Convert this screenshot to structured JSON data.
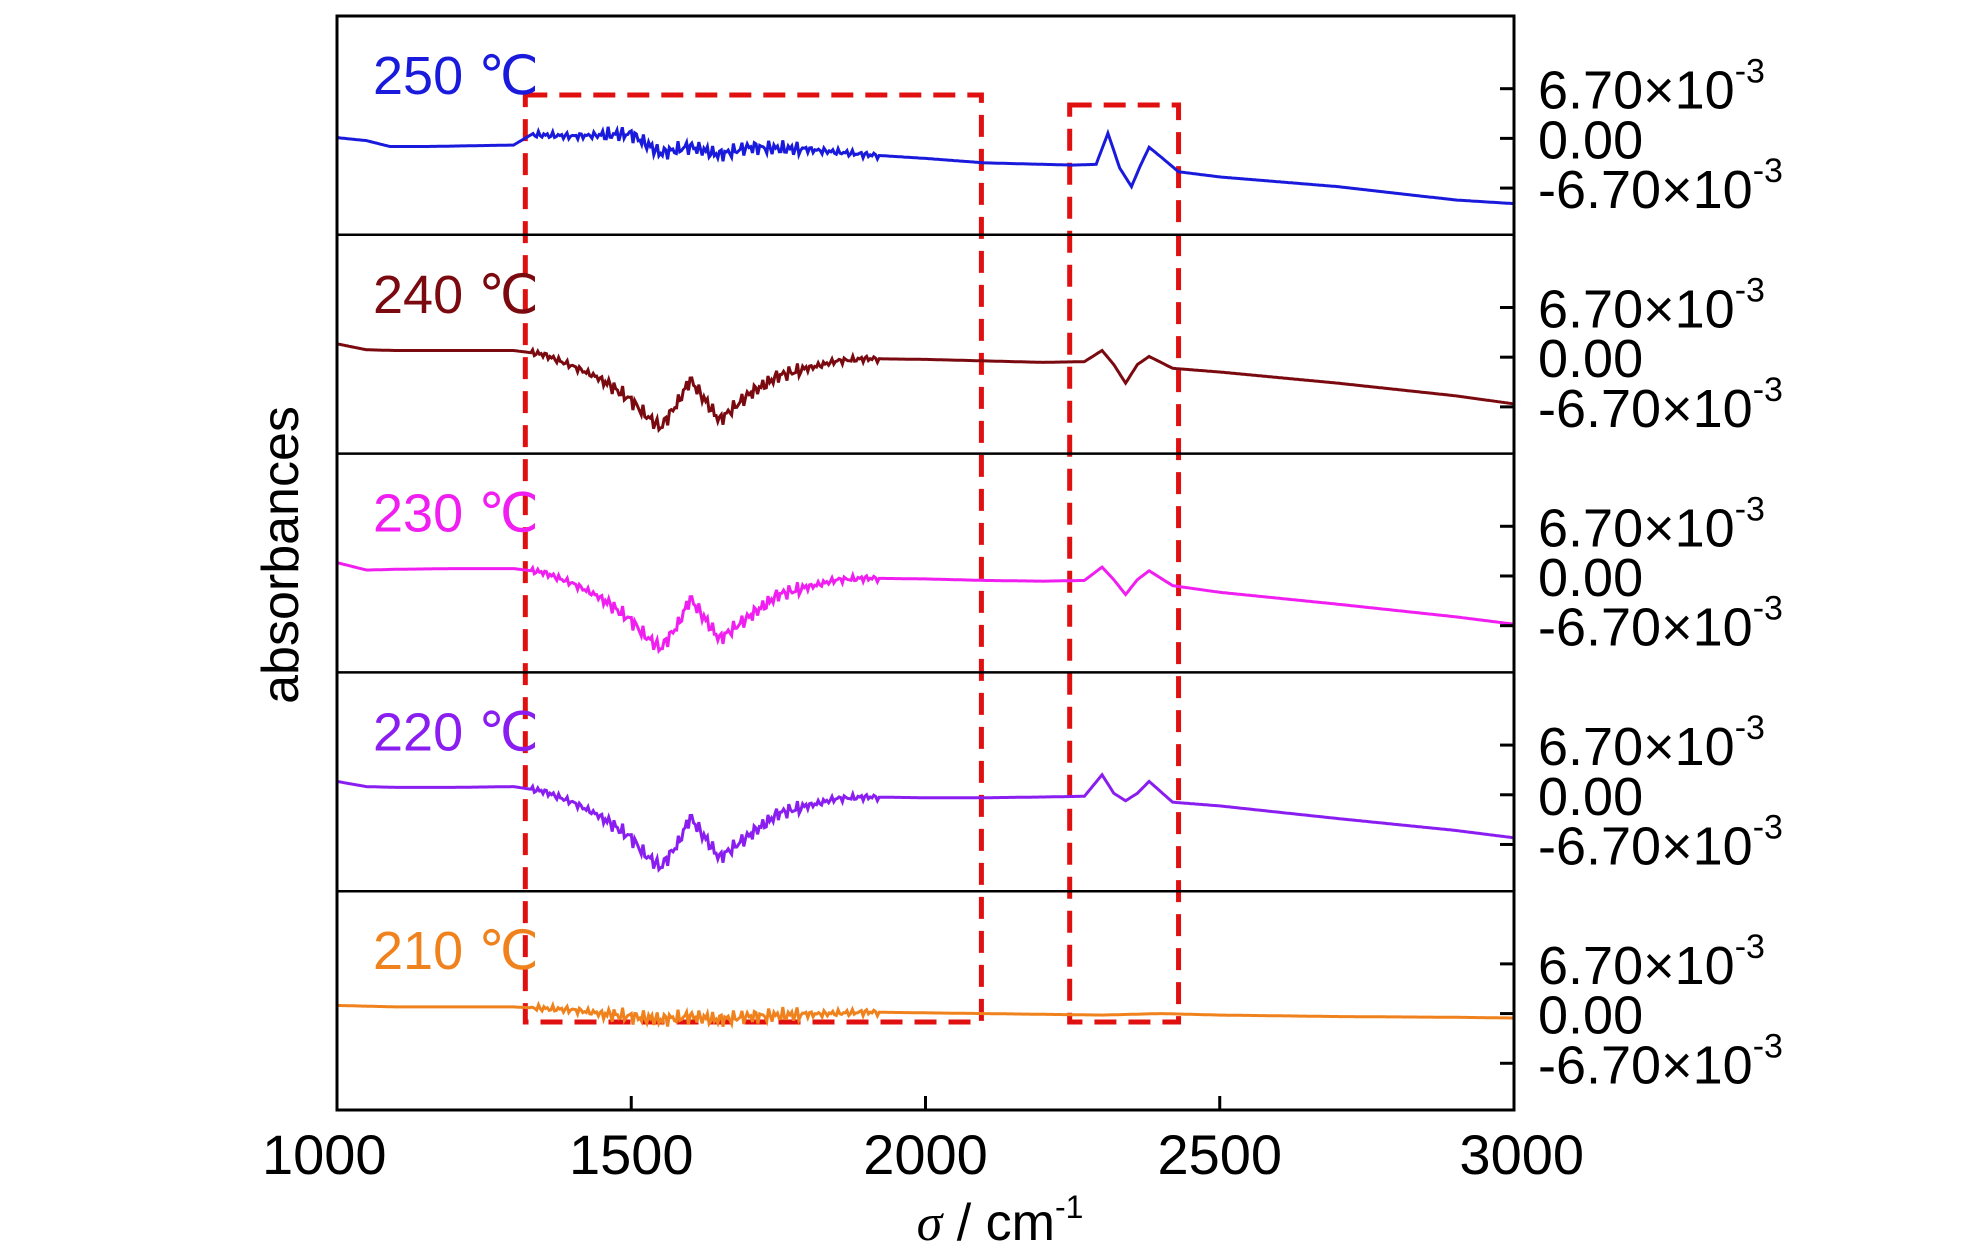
{
  "chart_data": {
    "type": "line",
    "xlabel_symbol": "σ",
    "xlabel_unit": " / cm",
    "xlabel_sup": "-1",
    "ylabel": "absorbances",
    "xlim": [
      1000,
      3000
    ],
    "x_ticks": [
      "1000",
      "1500",
      "2000",
      "2500",
      "3000"
    ],
    "y_tick_labels": {
      "upper_mantissa": "6.70×10",
      "upper_sup": "-3",
      "zero": "0.00",
      "lower_mantissa": "-6.70×10",
      "lower_sup": "-3"
    },
    "panel_ylim": [
      -0.013,
      0.0165
    ],
    "y_tick_values": [
      0.0067,
      0,
      -0.0067
    ],
    "highlight_boxes_x": [
      [
        1320,
        2095
      ],
      [
        2245,
        2430
      ]
    ],
    "series": [
      {
        "name": "250 ℃",
        "color": "#1a1adc",
        "x": [
          1000,
          1050,
          1090,
          1150,
          1300,
          1330,
          1400,
          1500,
          1550,
          1600,
          1650,
          1700,
          1800,
          1900,
          2000,
          2100,
          2250,
          2290,
          2310,
          2330,
          2350,
          2365,
          2380,
          2400,
          2430,
          2500,
          2700,
          2900,
          3000
        ],
        "y": [
          0.0001,
          -0.0003,
          -0.0011,
          -0.0011,
          -0.0009,
          0.0005,
          0.0003,
          0.0006,
          -0.002,
          -0.0011,
          -0.0022,
          -0.0012,
          -0.0015,
          -0.0022,
          -0.0027,
          -0.0033,
          -0.0036,
          -0.0035,
          0.0007,
          -0.004,
          -0.0065,
          -0.0037,
          -0.0012,
          -0.0025,
          -0.0045,
          -0.0052,
          -0.0065,
          -0.0083,
          -0.0088
        ]
      },
      {
        "name": "240 ℃",
        "color": "#7a0a10",
        "x": [
          1000,
          1050,
          1100,
          1200,
          1300,
          1350,
          1400,
          1450,
          1500,
          1520,
          1550,
          1580,
          1600,
          1650,
          1700,
          1750,
          1800,
          1850,
          1900,
          2000,
          2100,
          2200,
          2270,
          2300,
          2320,
          2340,
          2360,
          2380,
          2420,
          2500,
          2700,
          2900,
          3000
        ],
        "y": [
          0.0018,
          0.001,
          0.0009,
          0.0009,
          0.0009,
          0.0004,
          -0.0012,
          -0.003,
          -0.0058,
          -0.0075,
          -0.0095,
          -0.006,
          -0.003,
          -0.0085,
          -0.005,
          -0.0025,
          -0.0015,
          -0.0005,
          -0.0002,
          -0.0003,
          -0.0005,
          -0.0007,
          -0.0006,
          0.0009,
          -0.001,
          -0.0035,
          -0.001,
          0.0001,
          -0.0015,
          -0.002,
          -0.0035,
          -0.0052,
          -0.0063
        ]
      },
      {
        "name": "230 ℃",
        "color": "#f01ef0",
        "x": [
          1000,
          1050,
          1100,
          1200,
          1300,
          1350,
          1400,
          1450,
          1500,
          1520,
          1550,
          1580,
          1600,
          1650,
          1700,
          1750,
          1800,
          1850,
          1900,
          2000,
          2100,
          2200,
          2270,
          2300,
          2320,
          2340,
          2360,
          2380,
          2420,
          2500,
          2700,
          2900,
          3000
        ],
        "y": [
          0.0018,
          0.0008,
          0.0009,
          0.001,
          0.001,
          0.0005,
          -0.001,
          -0.003,
          -0.006,
          -0.0078,
          -0.0098,
          -0.0065,
          -0.003,
          -0.0085,
          -0.0055,
          -0.0025,
          -0.0015,
          -0.0005,
          -0.0003,
          -0.0004,
          -0.0006,
          -0.0007,
          -0.0006,
          0.0012,
          -0.0005,
          -0.0025,
          -0.0005,
          0.0007,
          -0.0013,
          -0.0022,
          -0.0038,
          -0.0055,
          -0.0065
        ]
      },
      {
        "name": "220 ℃",
        "color": "#8a1ef0",
        "x": [
          1000,
          1050,
          1100,
          1200,
          1300,
          1350,
          1400,
          1450,
          1500,
          1520,
          1550,
          1580,
          1600,
          1650,
          1700,
          1750,
          1800,
          1850,
          1900,
          2000,
          2100,
          2200,
          2270,
          2300,
          2320,
          2340,
          2360,
          2380,
          2420,
          2500,
          2700,
          2900,
          3000
        ],
        "y": [
          0.0018,
          0.0011,
          0.001,
          0.001,
          0.0011,
          0.0005,
          -0.001,
          -0.003,
          -0.0058,
          -0.0078,
          -0.0098,
          -0.0065,
          -0.003,
          -0.0085,
          -0.0055,
          -0.0025,
          -0.0015,
          -0.0005,
          -0.0003,
          -0.0004,
          -0.0004,
          -0.0003,
          -0.0002,
          0.0027,
          0.0002,
          -0.0008,
          0.0002,
          0.0018,
          -0.001,
          -0.0015,
          -0.0032,
          -0.0048,
          -0.0058
        ]
      },
      {
        "name": "210 ℃",
        "color": "#f0821e",
        "x": [
          1000,
          1100,
          1200,
          1300,
          1400,
          1450,
          1500,
          1550,
          1600,
          1650,
          1700,
          1800,
          1900,
          2000,
          2100,
          2200,
          2300,
          2400,
          2500,
          2700,
          2900,
          3000
        ],
        "y": [
          0.0011,
          0.0009,
          0.0009,
          0.0009,
          0.0005,
          0.0,
          -0.0004,
          -0.0008,
          -0.0004,
          -0.0008,
          -0.0004,
          -0.0001,
          0.0002,
          0.0001,
          0.0,
          -0.0001,
          -0.0002,
          0.0,
          -0.0002,
          -0.0004,
          -0.0005,
          -0.0006
        ]
      }
    ]
  }
}
